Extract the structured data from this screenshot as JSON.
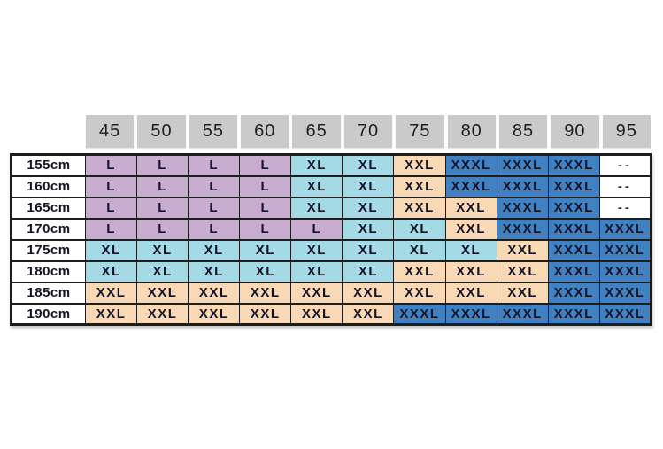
{
  "chart_data": {
    "type": "table",
    "columns": [
      "45",
      "50",
      "55",
      "60",
      "65",
      "70",
      "75",
      "80",
      "85",
      "90",
      "95"
    ],
    "rows": [
      {
        "label": "155cm",
        "cells": [
          "L",
          "L",
          "L",
          "L",
          "XL",
          "XL",
          "XXL",
          "XXXL",
          "XXXL",
          "XXXL",
          "--"
        ]
      },
      {
        "label": "160cm",
        "cells": [
          "L",
          "L",
          "L",
          "L",
          "XL",
          "XL",
          "XXL",
          "XXXL",
          "XXXL",
          "XXXL",
          "--"
        ]
      },
      {
        "label": "165cm",
        "cells": [
          "L",
          "L",
          "L",
          "L",
          "XL",
          "XL",
          "XXL",
          "XXL",
          "XXXL",
          "XXXL",
          "--"
        ]
      },
      {
        "label": "170cm",
        "cells": [
          "L",
          "L",
          "L",
          "L",
          "L",
          "XL",
          "XL",
          "XXL",
          "XXXL",
          "XXXL",
          "XXXL"
        ]
      },
      {
        "label": "175cm",
        "cells": [
          "XL",
          "XL",
          "XL",
          "XL",
          "XL",
          "XL",
          "XL",
          "XL",
          "XXL",
          "XXXL",
          "XXXL"
        ]
      },
      {
        "label": "180cm",
        "cells": [
          "XL",
          "XL",
          "XL",
          "XL",
          "XL",
          "XL",
          "XXL",
          "XXL",
          "XXL",
          "XXXL",
          "XXXL"
        ]
      },
      {
        "label": "185cm",
        "cells": [
          "XXL",
          "XXL",
          "XXL",
          "XXL",
          "XXL",
          "XXL",
          "XXL",
          "XXL",
          "XXL",
          "XXXL",
          "XXXL"
        ]
      },
      {
        "label": "190cm",
        "cells": [
          "XXL",
          "XXL",
          "XXL",
          "XXL",
          "XXL",
          "XXL",
          "XXXL",
          "XXXL",
          "XXXL",
          "XXXL",
          "XXXL"
        ]
      }
    ],
    "colors": {
      "L": "#c9add1",
      "XL": "#a4d9e6",
      "XXL": "#f8d8b5",
      "XXXL": "#4181c2",
      "--": "#ffffff",
      "header_bg": "#cacaca",
      "row_header_bg": "#ffffff",
      "border": "#1d1d1d",
      "text": "#141426",
      "page_bg": "#ffffff"
    },
    "layout": {
      "legend": "none",
      "grid": "on",
      "row_axis": "height (cm)",
      "column_axis": "weight"
    }
  }
}
